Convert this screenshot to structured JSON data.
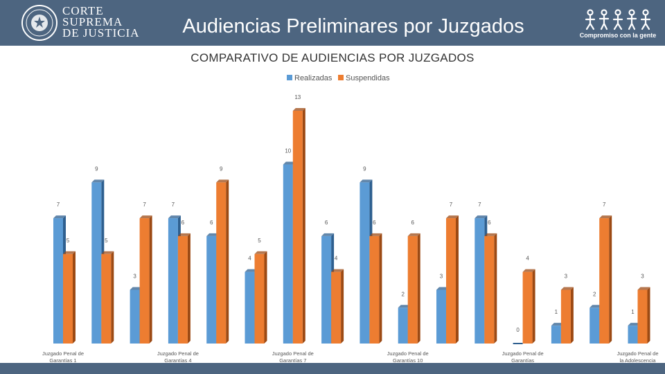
{
  "header": {
    "title": "Audiencias Preliminares por Juzgados",
    "logo_left": [
      "CORTE",
      "SUPREMA",
      "DE JUSTICIA"
    ],
    "logo_right_caption": "Compromiso con la gente"
  },
  "colors": {
    "header_bg": "#4d6580",
    "realizadas": "#5b9bd5",
    "suspendidas": "#ed7d31"
  },
  "chart_data": {
    "type": "bar",
    "title": "COMPARATIVO DE AUDIENCIAS POR JUZGADOS",
    "legend_position": "top",
    "series": [
      {
        "name": "Realizadas",
        "values": [
          7,
          9,
          3,
          7,
          6,
          4,
          10,
          6,
          9,
          2,
          3,
          7,
          0,
          1,
          2,
          1
        ]
      },
      {
        "name": "Suspendidas",
        "values": [
          5,
          5,
          7,
          6,
          9,
          5,
          13,
          4,
          6,
          6,
          7,
          6,
          4,
          3,
          7,
          3
        ]
      }
    ],
    "categories": [
      "Juzgado Penal de Garantías 1",
      "",
      "",
      "Juzgado Penal de Garantías 4",
      "",
      "",
      "Juzgado Penal de Garantías 7",
      "",
      "",
      "Juzgado Penal de Garantías 10",
      "",
      "",
      "Juzgado Penal de Garantías",
      "",
      "",
      "Juzgado Penal de la Adolescencia"
    ],
    "ylim": [
      0,
      13
    ],
    "grid": false
  }
}
